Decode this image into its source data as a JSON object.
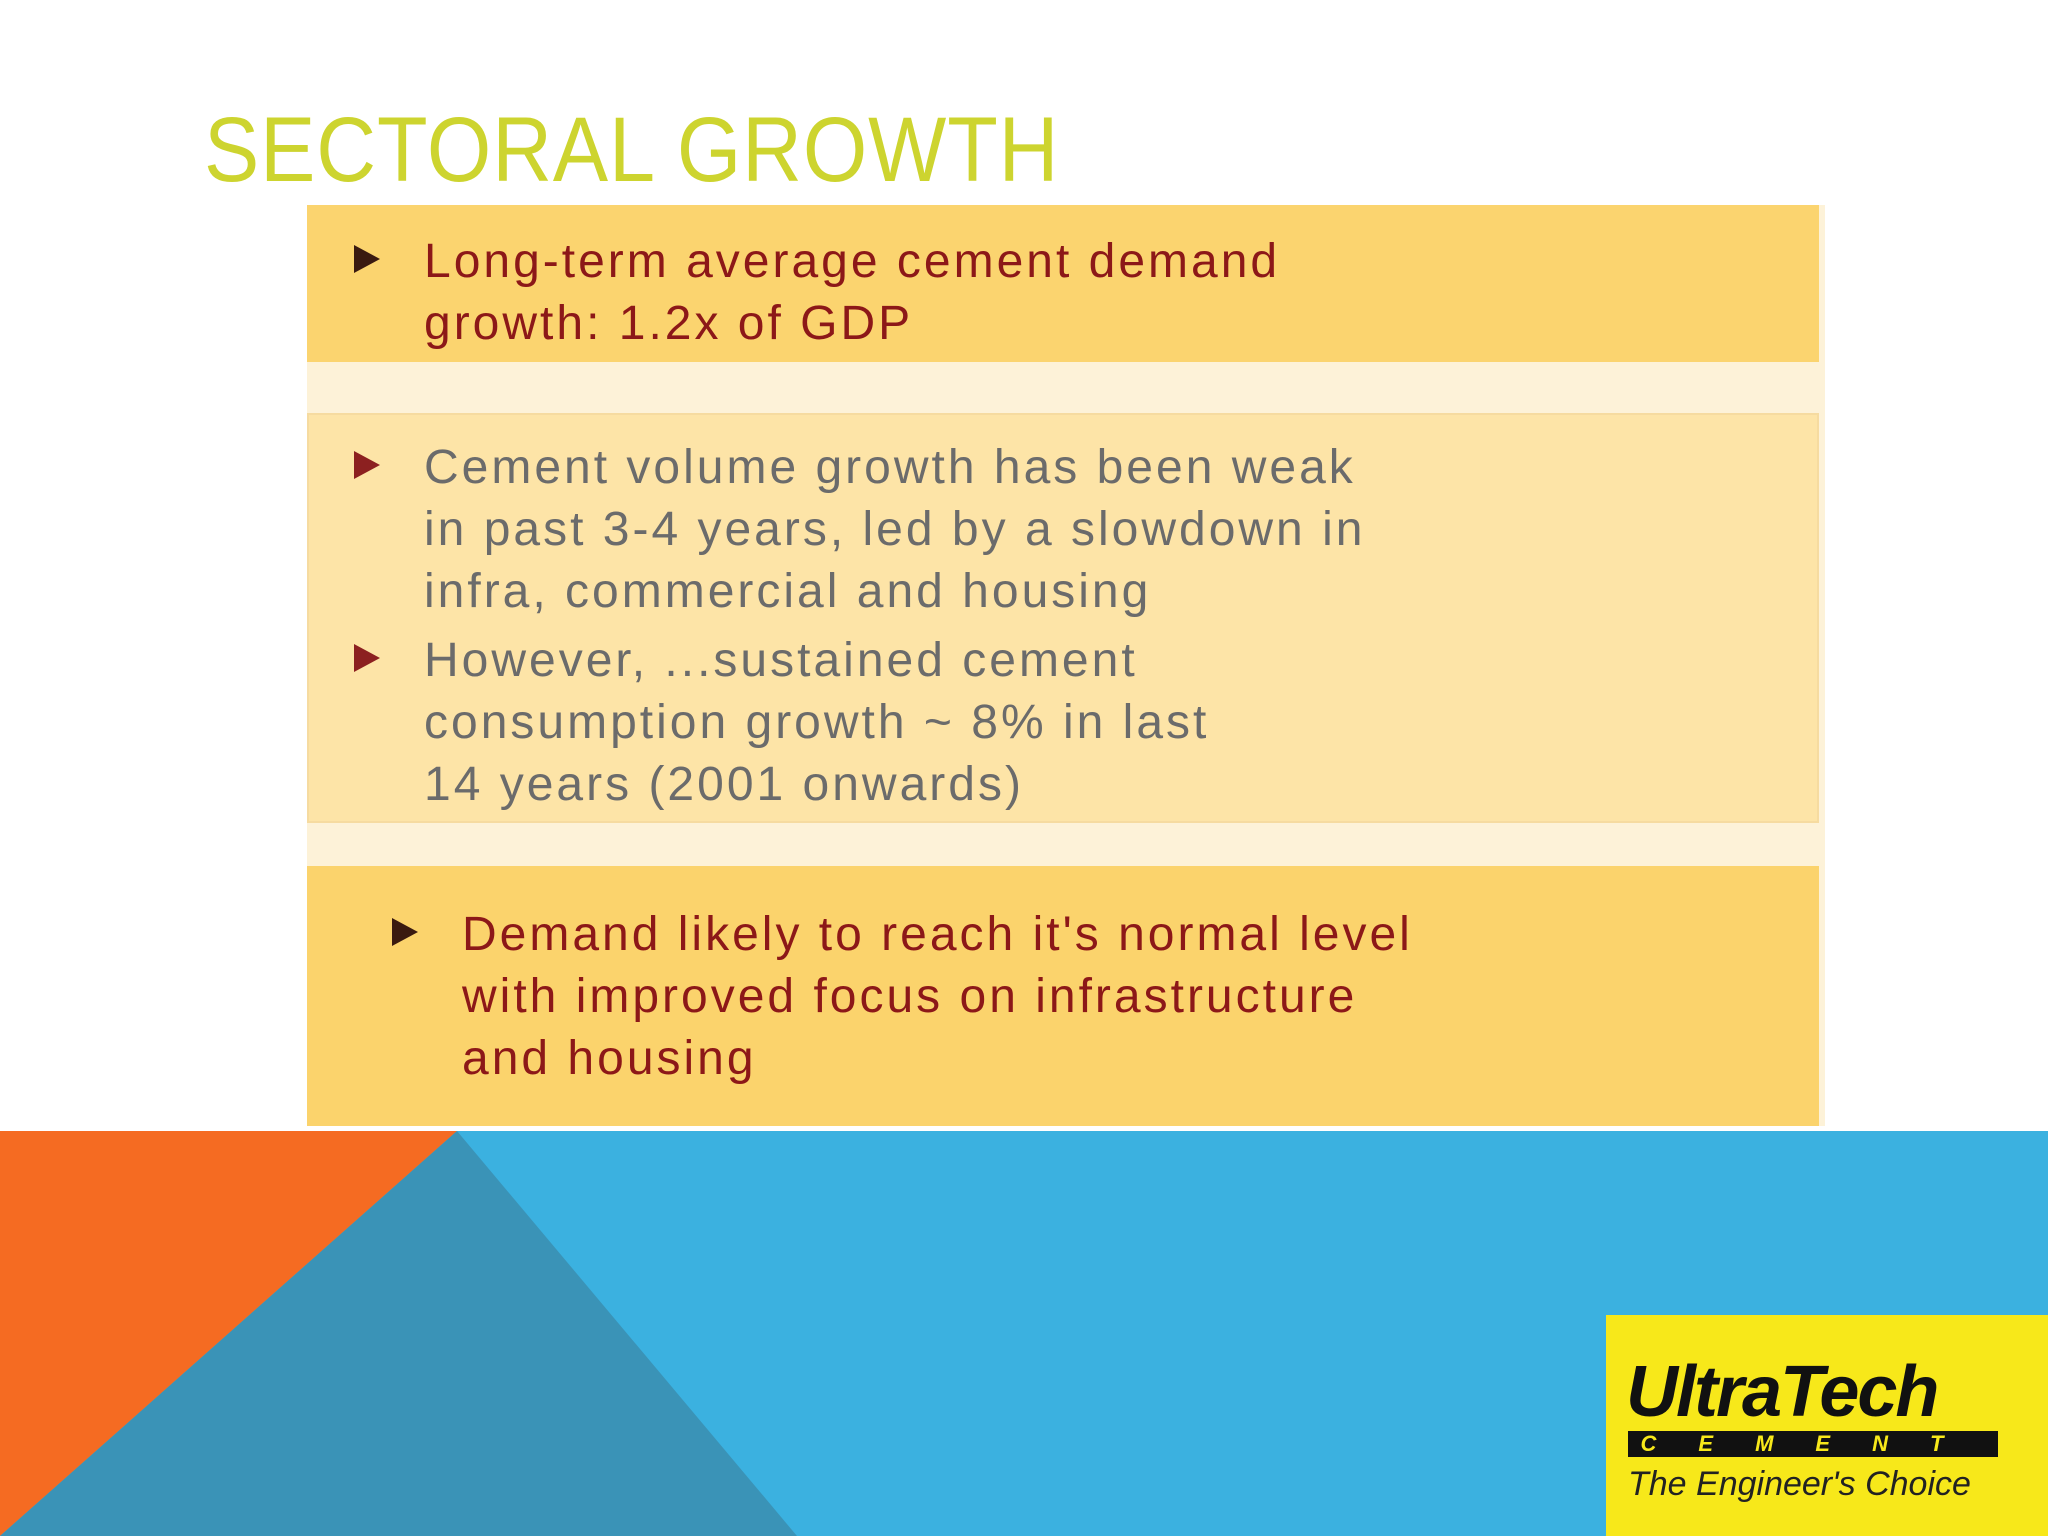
{
  "header": {
    "title": "SECTORAL GROWTH"
  },
  "boxes": [
    {
      "bullets": [
        "Long-term average cement demand\ngrowth: 1.2x of GDP"
      ]
    },
    {
      "bullets": [
        "Cement volume growth has been weak\nin past 3-4 years, led by a slowdown in\ninfra, commercial and housing",
        "However, ...sustained cement\nconsumption growth ~ 8% in last\n14 years (2001 onwards)"
      ]
    },
    {
      "bullets": [
        "Demand likely to reach it's normal level\nwith improved focus on infrastructure\nand housing"
      ]
    }
  ],
  "logo": {
    "name": "UltraTech",
    "sub": "CEMENT",
    "tagline": "The Engineer's Choice"
  }
}
